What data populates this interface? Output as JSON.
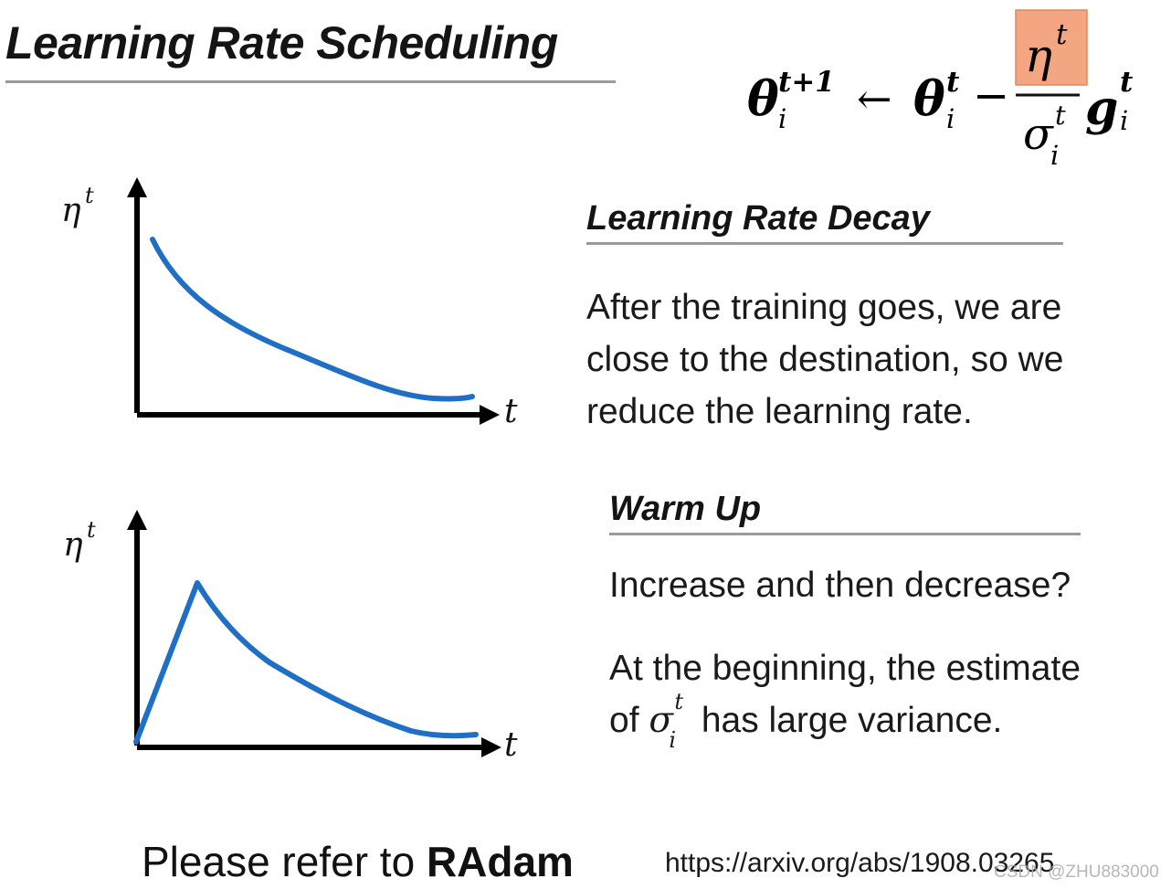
{
  "slide": {
    "title": "Learning Rate Scheduling",
    "formula": {
      "theta": "θ",
      "sub_i": "i",
      "sup_t1": "t+1",
      "sup_t": "t",
      "arrow": "←",
      "minus": "−",
      "eta": "η",
      "sigma": "σ",
      "g": "g",
      "highlight_color": "#f4a582"
    },
    "decay": {
      "heading": "Learning Rate Decay",
      "lines": [
        "After the training goes, we are",
        "close to the destination, so we",
        "reduce the learning rate."
      ]
    },
    "warmup": {
      "heading": "Warm Up",
      "question": "Increase and then decrease?",
      "line1": "At the beginning, the estimate",
      "line2_prefix": "of ",
      "line2_suffix": " has large variance."
    },
    "footer": {
      "text_prefix": "Please refer to ",
      "text_bold": "RAdam",
      "url": "https://arxiv.org/abs/1908.03265"
    },
    "watermark": "CSDN @ZHU883000"
  },
  "chart_data": [
    {
      "type": "line",
      "title": "",
      "ylabel": "η^t",
      "xlabel": "t",
      "series": [
        {
          "shape": "decay",
          "x": [
            0.05,
            0.2,
            0.4,
            0.6,
            0.8,
            0.95
          ],
          "y": [
            0.86,
            0.55,
            0.35,
            0.18,
            0.06,
            0.06
          ]
        }
      ],
      "color": "#1f6fc5",
      "axis_ticks": false
    },
    {
      "type": "line",
      "title": "",
      "ylabel": "η^t",
      "xlabel": "t",
      "series": [
        {
          "shape": "warmup",
          "x": [
            0.0,
            0.18,
            0.35,
            0.55,
            0.75,
            0.95
          ],
          "y": [
            0.0,
            0.7,
            0.42,
            0.22,
            0.06,
            0.05
          ]
        }
      ],
      "color": "#1f6fc5",
      "axis_ticks": false
    }
  ]
}
